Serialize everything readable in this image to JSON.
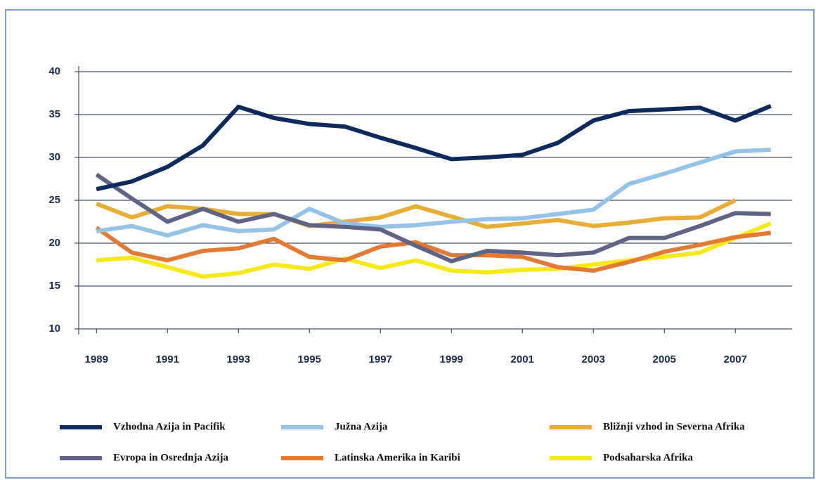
{
  "chart_data": {
    "type": "line",
    "x": [
      1989,
      1990,
      1991,
      1992,
      1993,
      1994,
      1995,
      1996,
      1997,
      1998,
      1999,
      2000,
      2001,
      2002,
      2003,
      2004,
      2005,
      2006,
      2007,
      2008
    ],
    "xlim": [
      1988.5,
      2008.6
    ],
    "xticks": [
      1989,
      1991,
      1993,
      1995,
      1997,
      1999,
      2001,
      2003,
      2005,
      2007
    ],
    "ylim": [
      10,
      40
    ],
    "yticks": [
      10,
      15,
      20,
      25,
      30,
      35,
      40
    ],
    "grid": true,
    "series": [
      {
        "name": "Vzhodna Azija in Pacifik",
        "color": "#0d2a5e",
        "values": [
          26.3,
          27.2,
          28.9,
          31.4,
          35.9,
          34.6,
          33.9,
          33.6,
          32.3,
          31.1,
          29.8,
          30.0,
          30.3,
          31.7,
          34.3,
          35.4,
          35.6,
          35.8,
          34.3,
          36.0
        ]
      },
      {
        "name": "Južna Azija",
        "color": "#93c3e6",
        "values": [
          21.4,
          22.0,
          20.9,
          22.1,
          21.4,
          21.6,
          24.0,
          22.3,
          21.9,
          22.1,
          22.5,
          22.8,
          22.9,
          23.4,
          23.9,
          26.9,
          28.1,
          29.4,
          30.7,
          30.9
        ]
      },
      {
        "name": "Bližnji vzhod in Severna Afrika",
        "color": "#e9ac34",
        "values": [
          24.6,
          23.0,
          24.3,
          24.0,
          23.4,
          23.4,
          22.0,
          22.5,
          23.0,
          24.3,
          23.1,
          21.9,
          22.3,
          22.7,
          22.0,
          22.4,
          22.9,
          23.0,
          25.0,
          null
        ]
      },
      {
        "name": "Evropa in Osrednja Azija",
        "color": "#5f6487",
        "values": [
          28.0,
          25.2,
          22.5,
          24.0,
          22.5,
          23.4,
          22.1,
          21.9,
          21.6,
          19.7,
          17.9,
          19.1,
          18.9,
          18.6,
          18.9,
          20.6,
          20.6,
          22.0,
          23.5,
          23.4
        ]
      },
      {
        "name": "Latinska Amerika in Karibi",
        "color": "#e27a34",
        "values": [
          21.8,
          18.9,
          18.0,
          19.1,
          19.4,
          20.5,
          18.4,
          18.0,
          19.6,
          20.1,
          18.6,
          18.6,
          18.4,
          17.2,
          16.8,
          17.8,
          19.0,
          19.8,
          20.7,
          21.2
        ]
      },
      {
        "name": "Podsaharska Afrika",
        "color": "#f7e819",
        "values": [
          18.0,
          18.3,
          17.2,
          16.1,
          16.5,
          17.5,
          17.0,
          18.2,
          17.1,
          18.0,
          16.8,
          16.6,
          16.9,
          17.0,
          17.5,
          18.0,
          18.4,
          18.9,
          20.6,
          22.3
        ]
      }
    ]
  }
}
